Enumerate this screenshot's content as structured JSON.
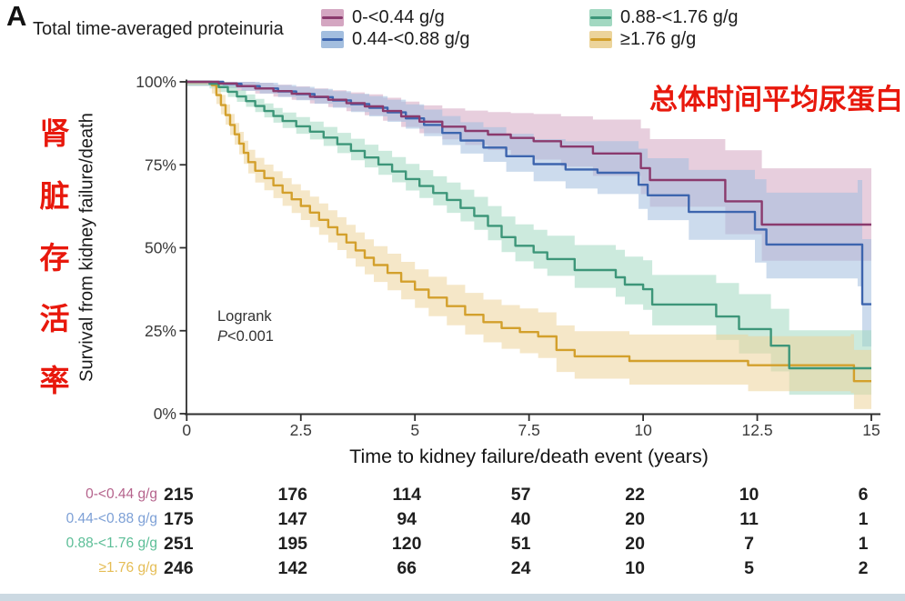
{
  "panel_label": "A",
  "legend": {
    "title": "Total time-averaged proteinuria",
    "items": [
      {
        "label": "0-<0.44 g/g",
        "line_color": "#8a3a6d",
        "band_color": "#d4a6c1"
      },
      {
        "label": "0.44-<0.88 g/g",
        "line_color": "#3d65ae",
        "band_color": "#a3bedf"
      },
      {
        "label": "0.88-<1.76 g/g",
        "line_color": "#3d9679",
        "band_color": "#a2d8c1"
      },
      {
        "label": "≥1.76 g/g",
        "line_color": "#d3a02c",
        "band_color": "#ecd49b"
      }
    ]
  },
  "annotations": {
    "chinese_right": "总体时间平均尿蛋白",
    "chinese_left_chars": [
      "肾",
      "脏",
      "存",
      "活",
      "率"
    ],
    "logrank_line1": "Logrank",
    "p_italic": "P",
    "p_rest": "<0.001",
    "red_color": "#e8180c"
  },
  "chart_data": {
    "type": "line",
    "subtype": "kaplan-meier-step-with-confidence-bands",
    "title": "",
    "xlabel": "Time to kidney failure/death event (years)",
    "ylabel": "Survival from kidney failure/death",
    "xlim": [
      0,
      15
    ],
    "ylim": [
      0,
      100
    ],
    "xticks": [
      0,
      2.5,
      5,
      7.5,
      10,
      12.5,
      15
    ],
    "xtick_labels": [
      "0",
      "2.5",
      "5",
      "7.5",
      "10",
      "12.5",
      "15"
    ],
    "ytick_values": [
      0,
      25,
      50,
      75,
      100
    ],
    "ytick_labels": [
      "0%",
      "25%",
      "50%",
      "75%",
      "100%"
    ],
    "grid": false,
    "legend_position": "top",
    "series": [
      {
        "name": "0-<0.44 g/g",
        "line_color": "#8a3a6d",
        "band_color": "#d4a6c1",
        "ci_est": {
          "start": 1.2,
          "end_upper": 22,
          "end_lower": 14,
          "exp": 1.6
        },
        "points": [
          [
            0,
            100
          ],
          [
            0.7,
            99.5
          ],
          [
            1.1,
            98.7
          ],
          [
            1.5,
            98
          ],
          [
            1.9,
            97.2
          ],
          [
            2.3,
            96.4
          ],
          [
            2.7,
            95.5
          ],
          [
            3.1,
            94.6
          ],
          [
            3.5,
            93.6
          ],
          [
            3.9,
            92.6
          ],
          [
            4.3,
            91.2
          ],
          [
            4.7,
            89.6
          ],
          [
            5.1,
            88
          ],
          [
            5.6,
            86.5
          ],
          [
            6.1,
            85.2
          ],
          [
            6.6,
            84.1
          ],
          [
            7.1,
            83.1
          ],
          [
            7.6,
            82.1
          ],
          [
            8.2,
            80.5
          ],
          [
            8.9,
            78.4
          ],
          [
            9.95,
            74
          ],
          [
            10.15,
            70.4
          ],
          [
            11.8,
            64
          ],
          [
            12.6,
            57
          ],
          [
            15,
            57
          ]
        ]
      },
      {
        "name": "0.44-<0.88 g/g",
        "line_color": "#3d65ae",
        "band_color": "#a3bedf",
        "ci_est": {
          "start": 1.2,
          "end_upper": 20,
          "end_lower": 13,
          "exp": 1.6
        },
        "points": [
          [
            0,
            100
          ],
          [
            0.8,
            99.4
          ],
          [
            1.2,
            98.7
          ],
          [
            1.6,
            98
          ],
          [
            2,
            97.1
          ],
          [
            2.4,
            96.3
          ],
          [
            2.8,
            95.4
          ],
          [
            3.2,
            94.4
          ],
          [
            3.6,
            93.3
          ],
          [
            4,
            92.2
          ],
          [
            4.4,
            90.8
          ],
          [
            4.8,
            89
          ],
          [
            5.2,
            87
          ],
          [
            5.6,
            84.6
          ],
          [
            6,
            82.3
          ],
          [
            6.5,
            80.2
          ],
          [
            7,
            77.6
          ],
          [
            7.6,
            75.2
          ],
          [
            8.3,
            73.6
          ],
          [
            9,
            72.6
          ],
          [
            9.9,
            69
          ],
          [
            10.1,
            65.8
          ],
          [
            11,
            60.8
          ],
          [
            12.45,
            55.5
          ],
          [
            12.7,
            51
          ],
          [
            14.7,
            51
          ],
          [
            14.8,
            33
          ],
          [
            15,
            33
          ]
        ]
      },
      {
        "name": "0.88-<1.76 g/g",
        "line_color": "#3d9679",
        "band_color": "#a2d8c1",
        "ci_est": {
          "start": 1.2,
          "end_upper": 13,
          "end_lower": 9,
          "exp": 1.1
        },
        "points": [
          [
            0,
            100
          ],
          [
            0.5,
            99.4
          ],
          [
            0.7,
            98.4
          ],
          [
            0.9,
            97
          ],
          [
            1.1,
            95.6
          ],
          [
            1.3,
            94.2
          ],
          [
            1.5,
            92.7
          ],
          [
            1.7,
            91.2
          ],
          [
            1.9,
            89.7
          ],
          [
            2.1,
            88.2
          ],
          [
            2.4,
            86.6
          ],
          [
            2.7,
            85
          ],
          [
            3,
            83.2
          ],
          [
            3.3,
            81.2
          ],
          [
            3.6,
            79.2
          ],
          [
            3.9,
            77.2
          ],
          [
            4.2,
            75.1
          ],
          [
            4.5,
            73
          ],
          [
            4.8,
            70.7
          ],
          [
            5.1,
            68.6
          ],
          [
            5.4,
            66.5
          ],
          [
            5.7,
            64.4
          ],
          [
            6,
            62
          ],
          [
            6.3,
            59.6
          ],
          [
            6.6,
            56.6
          ],
          [
            6.9,
            53.2
          ],
          [
            7.2,
            50.6
          ],
          [
            7.6,
            48.6
          ],
          [
            7.9,
            46.6
          ],
          [
            8.5,
            43.3
          ],
          [
            9.4,
            41.1
          ],
          [
            9.6,
            38.9
          ],
          [
            10,
            37.5
          ],
          [
            10.2,
            32.9
          ],
          [
            11.6,
            29.3
          ],
          [
            12.1,
            25.5
          ],
          [
            12.8,
            20.5
          ],
          [
            13.2,
            13.7
          ],
          [
            15,
            13.7
          ]
        ]
      },
      {
        "name": "≥1.76 g/g",
        "line_color": "#d3a02c",
        "band_color": "#ecd49b",
        "ci_est": {
          "start": 0.8,
          "end_upper": 9.5,
          "end_lower": 8.5,
          "exp": 0.45
        },
        "points": [
          [
            0,
            100
          ],
          [
            0.55,
            99
          ],
          [
            0.65,
            96
          ],
          [
            0.75,
            93
          ],
          [
            0.85,
            90
          ],
          [
            0.95,
            87
          ],
          [
            1.05,
            84.2
          ],
          [
            1.15,
            81.4
          ],
          [
            1.25,
            78.6
          ],
          [
            1.35,
            75.8
          ],
          [
            1.5,
            73.2
          ],
          [
            1.7,
            71
          ],
          [
            1.9,
            68.8
          ],
          [
            2.1,
            66.6
          ],
          [
            2.3,
            64.6
          ],
          [
            2.5,
            62.6
          ],
          [
            2.7,
            60.6
          ],
          [
            2.9,
            58.4
          ],
          [
            3.1,
            56.2
          ],
          [
            3.3,
            54
          ],
          [
            3.5,
            51.6
          ],
          [
            3.7,
            49.2
          ],
          [
            3.9,
            47
          ],
          [
            4.1,
            44.8
          ],
          [
            4.4,
            42.4
          ],
          [
            4.7,
            39.8
          ],
          [
            5,
            37.4
          ],
          [
            5.3,
            35
          ],
          [
            5.7,
            32.4
          ],
          [
            6.1,
            29.8
          ],
          [
            6.5,
            27.6
          ],
          [
            6.9,
            25.8
          ],
          [
            7.3,
            24.6
          ],
          [
            7.7,
            23.3
          ],
          [
            8.1,
            19.2
          ],
          [
            8.5,
            17.3
          ],
          [
            9.7,
            15.9
          ],
          [
            12.3,
            14.6
          ],
          [
            14.55,
            14.6
          ],
          [
            14.62,
            9.8
          ],
          [
            15,
            9.8
          ]
        ]
      }
    ],
    "annotation": "Logrank P<0.001"
  },
  "risk_table": {
    "times": [
      0,
      2.5,
      5,
      7.5,
      10,
      12.5,
      15
    ],
    "rows": [
      {
        "label": "0-<0.44 g/g",
        "color": "#b5638c",
        "counts": [
          215,
          176,
          114,
          57,
          22,
          10,
          6
        ]
      },
      {
        "label": "0.44-<0.88 g/g",
        "color": "#7da0d6",
        "counts": [
          175,
          147,
          94,
          40,
          20,
          11,
          1
        ]
      },
      {
        "label": "0.88-<1.76 g/g",
        "color": "#5cbe97",
        "counts": [
          251,
          195,
          120,
          51,
          20,
          7,
          1
        ]
      },
      {
        "label": "≥1.76 g/g",
        "color": "#e5bd55",
        "counts": [
          246,
          142,
          66,
          24,
          10,
          5,
          2
        ]
      }
    ]
  },
  "style_colors": {
    "axis": "#2e2e2e",
    "tick_text": "#3a3a3a",
    "bottom_bar": "#ccd9e2"
  }
}
